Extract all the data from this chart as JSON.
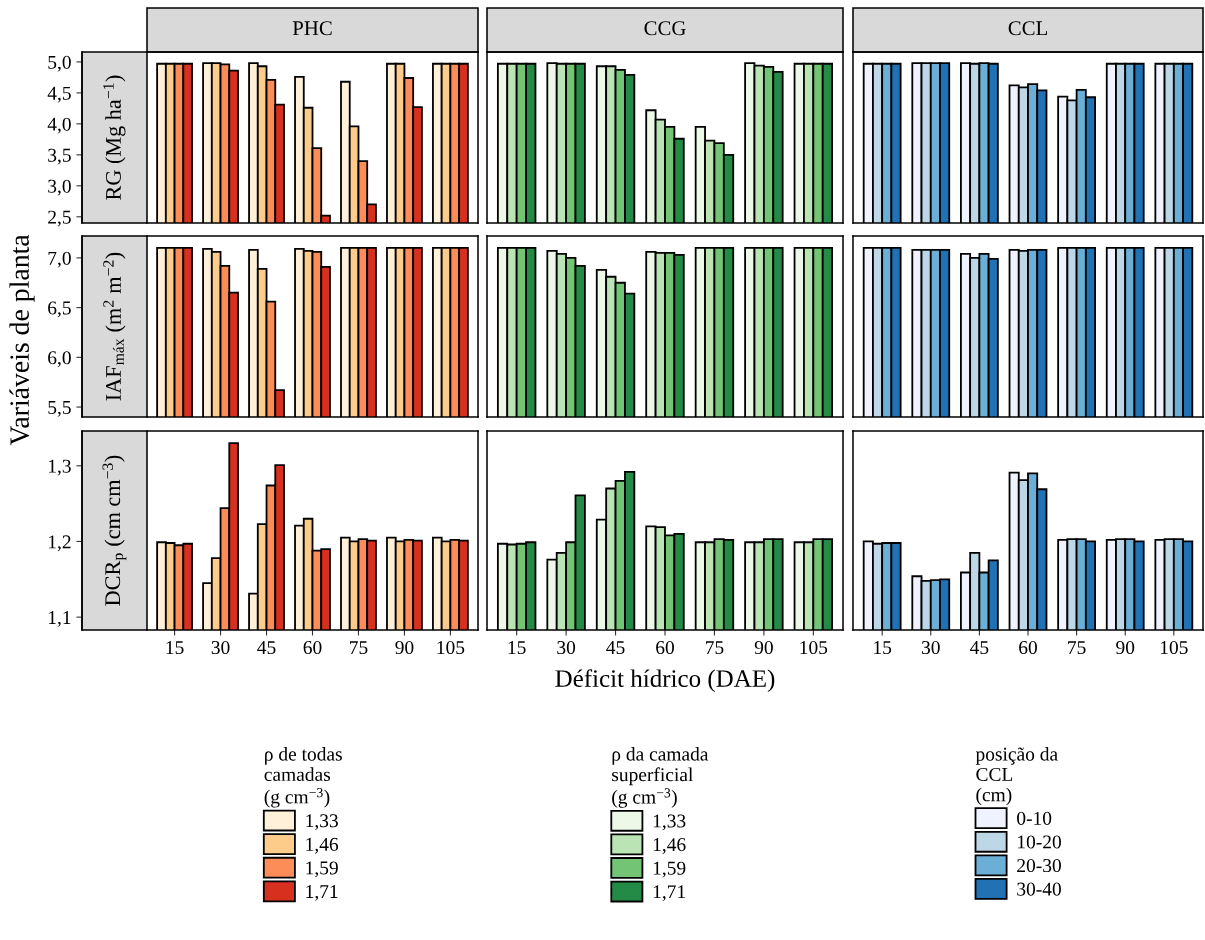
{
  "chart_data": [
    {
      "type": "bar",
      "title": "PHC",
      "ylabel": "RG (Mg ha$^{−1}$)",
      "annotations": [
        "Variáveis de planta"
      ],
      "categories": [
        "15",
        "30",
        "45",
        "60",
        "75",
        "90",
        "105"
      ],
      "ylim": [
        2.4,
        5.16
      ],
      "yticks": [
        {
          "value": 2.5,
          "label": "2,5"
        },
        {
          "value": 3.0,
          "label": "3,0"
        },
        {
          "value": 3.5,
          "label": "3,5"
        },
        {
          "value": 4.0,
          "label": "4,0"
        },
        {
          "value": 4.5,
          "label": "4,5"
        },
        {
          "value": 5.0,
          "label": "5,0"
        }
      ],
      "tick_labels": "y",
      "series": [
        {
          "color": "#fef0d9",
          "values": [
            4.97,
            4.98,
            4.98,
            4.76,
            4.68,
            4.97,
            4.97
          ]
        },
        {
          "color": "#fdcc8a",
          "values": [
            4.97,
            4.98,
            4.93,
            4.26,
            3.96,
            4.97,
            4.97
          ]
        },
        {
          "color": "#fc8d59",
          "values": [
            4.97,
            4.96,
            4.71,
            3.61,
            3.4,
            4.74,
            4.97
          ]
        },
        {
          "color": "#d7301f",
          "values": [
            4.97,
            4.86,
            4.31,
            2.52,
            2.7,
            4.27,
            4.97
          ]
        }
      ]
    },
    {
      "type": "bar",
      "title": "CCG",
      "categories": [
        "15",
        "30",
        "45",
        "60",
        "75",
        "90",
        "105"
      ],
      "ylim": [
        2.4,
        5.16
      ],
      "tick_labels": false,
      "series": [
        {
          "color": "#edf8e9",
          "values": [
            4.97,
            4.98,
            4.93,
            4.22,
            3.95,
            4.98,
            4.97
          ]
        },
        {
          "color": "#bae4b3",
          "values": [
            4.97,
            4.97,
            4.93,
            4.07,
            3.73,
            4.94,
            4.97
          ]
        },
        {
          "color": "#74c476",
          "values": [
            4.97,
            4.97,
            4.87,
            3.95,
            3.69,
            4.92,
            4.97
          ]
        },
        {
          "color": "#238b45",
          "values": [
            4.97,
            4.97,
            4.79,
            3.76,
            3.5,
            4.84,
            4.97
          ]
        }
      ]
    },
    {
      "type": "bar",
      "title": "CCL",
      "categories": [
        "15",
        "30",
        "45",
        "60",
        "75",
        "90",
        "105"
      ],
      "ylim": [
        2.4,
        5.16
      ],
      "tick_labels": false,
      "series": [
        {
          "color": "#eff3ff",
          "values": [
            4.97,
            4.98,
            4.98,
            4.62,
            4.44,
            4.97,
            4.97
          ]
        },
        {
          "color": "#bdd7e7",
          "values": [
            4.97,
            4.98,
            4.97,
            4.59,
            4.38,
            4.97,
            4.97
          ]
        },
        {
          "color": "#6baed6",
          "values": [
            4.97,
            4.98,
            4.98,
            4.64,
            4.55,
            4.97,
            4.97
          ]
        },
        {
          "color": "#2171b5",
          "values": [
            4.97,
            4.98,
            4.97,
            4.54,
            4.43,
            4.97,
            4.97
          ]
        }
      ]
    },
    {
      "type": "bar",
      "ylabel": "IAF$_{máx}$ (m$^{2}$ m$^{−2}$)",
      "categories": [
        "15",
        "30",
        "45",
        "60",
        "75",
        "90",
        "105"
      ],
      "ylim": [
        5.4,
        7.22
      ],
      "yticks": [
        {
          "value": 5.5,
          "label": "5,5"
        },
        {
          "value": 6.0,
          "label": "6,0"
        },
        {
          "value": 6.5,
          "label": "6,5"
        },
        {
          "value": 7.0,
          "label": "7,0"
        }
      ],
      "tick_labels": "y",
      "series": [
        {
          "color": "#fef0d9",
          "values": [
            7.1,
            7.09,
            7.08,
            7.09,
            7.1,
            7.1,
            7.1
          ]
        },
        {
          "color": "#fdcc8a",
          "values": [
            7.1,
            7.06,
            6.89,
            7.07,
            7.1,
            7.1,
            7.1
          ]
        },
        {
          "color": "#fc8d59",
          "values": [
            7.1,
            6.92,
            6.56,
            7.06,
            7.1,
            7.1,
            7.1
          ]
        },
        {
          "color": "#d7301f",
          "values": [
            7.1,
            6.65,
            5.67,
            6.91,
            7.1,
            7.1,
            7.1
          ]
        }
      ]
    },
    {
      "type": "bar",
      "categories": [
        "15",
        "30",
        "45",
        "60",
        "75",
        "90",
        "105"
      ],
      "ylim": [
        5.4,
        7.22
      ],
      "tick_labels": false,
      "series": [
        {
          "color": "#edf8e9",
          "values": [
            7.1,
            7.07,
            6.88,
            7.06,
            7.1,
            7.1,
            7.1
          ]
        },
        {
          "color": "#bae4b3",
          "values": [
            7.1,
            7.04,
            6.81,
            7.05,
            7.1,
            7.1,
            7.1
          ]
        },
        {
          "color": "#74c476",
          "values": [
            7.1,
            7.0,
            6.75,
            7.05,
            7.1,
            7.1,
            7.1
          ]
        },
        {
          "color": "#238b45",
          "values": [
            7.1,
            6.92,
            6.64,
            7.03,
            7.1,
            7.1,
            7.1
          ]
        }
      ]
    },
    {
      "type": "bar",
      "categories": [
        "15",
        "30",
        "45",
        "60",
        "75",
        "90",
        "105"
      ],
      "ylim": [
        5.4,
        7.22
      ],
      "tick_labels": false,
      "series": [
        {
          "color": "#eff3ff",
          "values": [
            7.1,
            7.08,
            7.04,
            7.08,
            7.1,
            7.1,
            7.1
          ]
        },
        {
          "color": "#bdd7e7",
          "values": [
            7.1,
            7.08,
            7.0,
            7.07,
            7.1,
            7.1,
            7.1
          ]
        },
        {
          "color": "#6baed6",
          "values": [
            7.1,
            7.08,
            7.04,
            7.08,
            7.1,
            7.1,
            7.1
          ]
        },
        {
          "color": "#2171b5",
          "values": [
            7.1,
            7.08,
            6.99,
            7.08,
            7.1,
            7.1,
            7.1
          ]
        }
      ]
    },
    {
      "type": "bar",
      "ylabel": "DCR$_{p}$ (cm cm$^{−3}$)",
      "categories": [
        "15",
        "30",
        "45",
        "60",
        "75",
        "90",
        "105"
      ],
      "ylim": [
        1.083,
        1.346
      ],
      "yticks": [
        {
          "value": 1.1,
          "label": "1,1"
        },
        {
          "value": 1.2,
          "label": "1,2"
        },
        {
          "value": 1.3,
          "label": "1,3"
        }
      ],
      "legend": "bottom",
      "legend_title": "ρ de todas\ncamadas\n(g cm$^{−3}$)",
      "series": [
        {
          "name": "1,33",
          "color": "#fef0d9",
          "values": [
            1.199,
            1.145,
            1.131,
            1.221,
            1.205,
            1.205,
            1.205
          ]
        },
        {
          "name": "1,46",
          "color": "#fdcc8a",
          "values": [
            1.198,
            1.178,
            1.223,
            1.23,
            1.2,
            1.2,
            1.2
          ]
        },
        {
          "name": "1,59",
          "color": "#fc8d59",
          "values": [
            1.195,
            1.244,
            1.274,
            1.188,
            1.203,
            1.202,
            1.202
          ]
        },
        {
          "name": "1,71",
          "color": "#d7301f",
          "values": [
            1.197,
            1.33,
            1.301,
            1.19,
            1.201,
            1.201,
            1.201
          ]
        }
      ]
    },
    {
      "type": "bar",
      "xlabel": "Déficit hídrico (DAE)",
      "categories": [
        "15",
        "30",
        "45",
        "60",
        "75",
        "90",
        "105"
      ],
      "ylim": [
        1.083,
        1.346
      ],
      "tick_labels": "x",
      "legend": "bottom",
      "legend_title": "ρ da camada\nsuperficial\n(g cm$^{−3}$)",
      "series": [
        {
          "name": "1,33",
          "color": "#edf8e9",
          "values": [
            1.197,
            1.176,
            1.229,
            1.22,
            1.199,
            1.199,
            1.199
          ]
        },
        {
          "name": "1,46",
          "color": "#bae4b3",
          "values": [
            1.196,
            1.185,
            1.27,
            1.219,
            1.199,
            1.199,
            1.199
          ]
        },
        {
          "name": "1,59",
          "color": "#74c476",
          "values": [
            1.197,
            1.199,
            1.28,
            1.208,
            1.203,
            1.203,
            1.203
          ]
        },
        {
          "name": "1,71",
          "color": "#238b45",
          "values": [
            1.199,
            1.261,
            1.292,
            1.21,
            1.202,
            1.203,
            1.203
          ]
        }
      ]
    },
    {
      "type": "bar",
      "categories": [
        "15",
        "30",
        "45",
        "60",
        "75",
        "90",
        "105"
      ],
      "ylim": [
        1.083,
        1.346
      ],
      "tick_labels": "x",
      "legend": "bottom",
      "legend_title": "posição da\nCCL\n(cm)",
      "series": [
        {
          "name": "0-10",
          "color": "#eff3ff",
          "values": [
            1.2,
            1.154,
            1.159,
            1.291,
            1.202,
            1.202,
            1.202
          ]
        },
        {
          "name": "10-20",
          "color": "#bdd7e7",
          "values": [
            1.197,
            1.148,
            1.185,
            1.281,
            1.203,
            1.203,
            1.203
          ]
        },
        {
          "name": "20-30",
          "color": "#6baed6",
          "values": [
            1.198,
            1.149,
            1.159,
            1.29,
            1.203,
            1.203,
            1.203
          ]
        },
        {
          "name": "30-40",
          "color": "#2171b5",
          "values": [
            1.198,
            1.15,
            1.175,
            1.269,
            1.2,
            1.2,
            1.2
          ]
        }
      ]
    }
  ]
}
